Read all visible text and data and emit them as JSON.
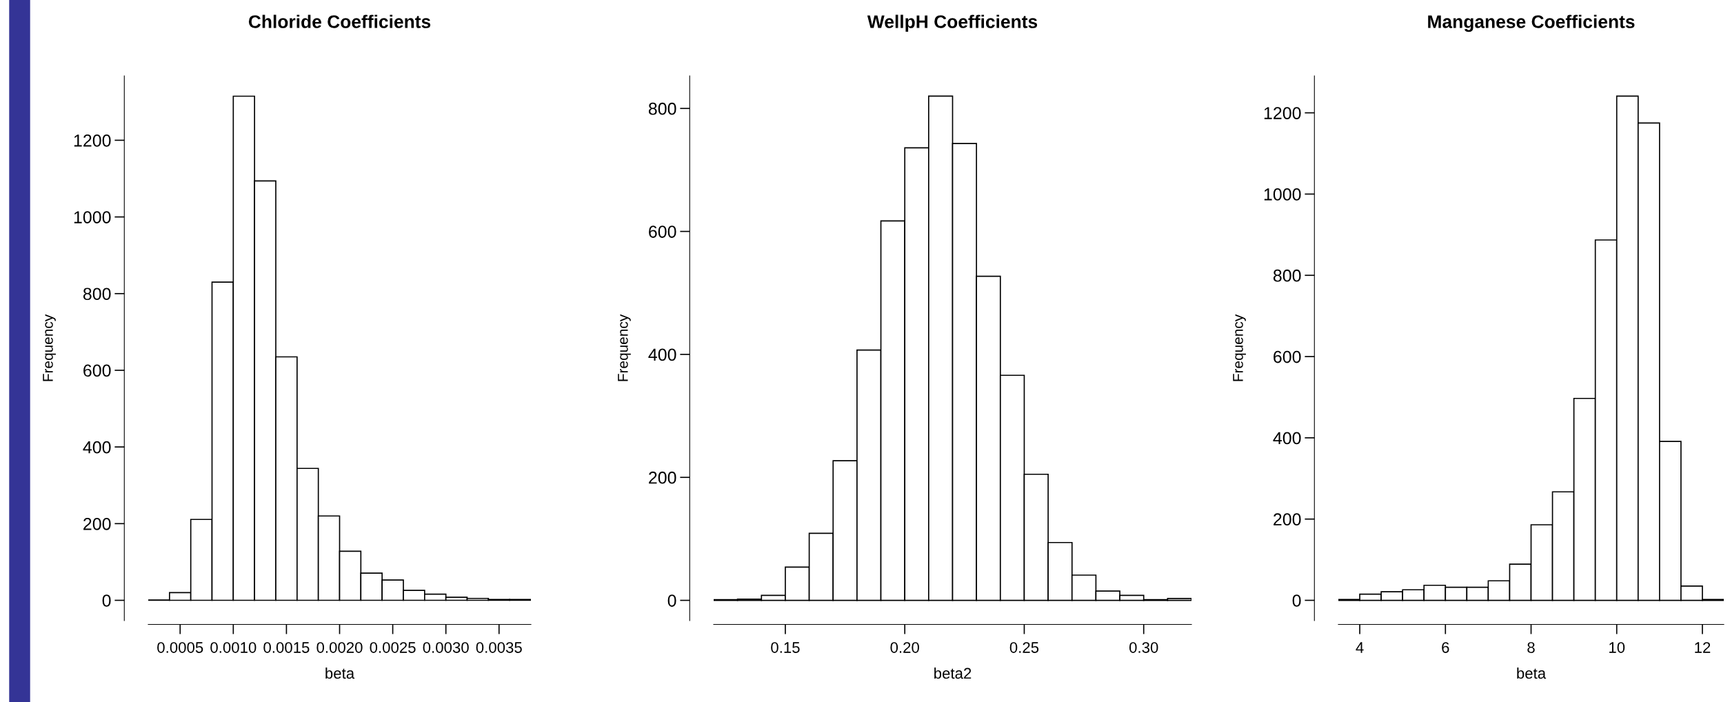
{
  "chart_data": [
    {
      "type": "histogram",
      "title": "Chloride Coefficients",
      "xlabel": "beta",
      "ylabel": "Frequency",
      "color": "#ffffff",
      "grid": false,
      "legend": false,
      "bins": [
        0.0002,
        0.0004,
        0.0006,
        0.0008,
        0.001,
        0.0012,
        0.0014,
        0.0016,
        0.0018,
        0.002,
        0.0022,
        0.0024,
        0.0026,
        0.0028,
        0.003,
        0.0032,
        0.0034,
        0.0036,
        0.0038
      ],
      "values": [
        1,
        20,
        211,
        830,
        1315,
        1094,
        635,
        344,
        220,
        128,
        71,
        53,
        26,
        16,
        8,
        5,
        2,
        2
      ],
      "xlim": [
        0.0002,
        0.0038
      ],
      "xticks": [
        {
          "value": 0.0005,
          "label": "0.0005"
        },
        {
          "value": 0.001,
          "label": "0.0010"
        },
        {
          "value": 0.0015,
          "label": "0.0015"
        },
        {
          "value": 0.002,
          "label": "0.0020"
        },
        {
          "value": 0.0025,
          "label": "0.0025"
        },
        {
          "value": 0.003,
          "label": "0.0030"
        },
        {
          "value": 0.0035,
          "label": "0.0035"
        }
      ],
      "ylim": [
        -53,
        1368
      ],
      "yticks": [
        0,
        200,
        400,
        600,
        800,
        1000,
        1200
      ]
    },
    {
      "type": "histogram",
      "title": "WellpH Coefficients",
      "xlabel": "beta2",
      "ylabel": "Frequency",
      "color": "#ffffff",
      "grid": false,
      "legend": false,
      "bins": [
        0.12,
        0.13,
        0.14,
        0.15,
        0.16,
        0.17,
        0.18,
        0.19,
        0.2,
        0.21,
        0.22,
        0.23,
        0.24,
        0.25,
        0.26,
        0.27,
        0.28,
        0.29,
        0.3,
        0.31,
        0.32
      ],
      "values": [
        1,
        2,
        8,
        54,
        109,
        227,
        407,
        617,
        736,
        820,
        743,
        527,
        366,
        205,
        94,
        41,
        15,
        8,
        1,
        3
      ],
      "xlim": [
        0.12,
        0.32
      ],
      "xticks": [
        {
          "value": 0.15,
          "label": "0.15"
        },
        {
          "value": 0.2,
          "label": "0.20"
        },
        {
          "value": 0.25,
          "label": "0.25"
        },
        {
          "value": 0.3,
          "label": "0.30"
        }
      ],
      "ylim": [
        -33,
        853
      ],
      "yticks": [
        0,
        200,
        400,
        600,
        800
      ]
    },
    {
      "type": "histogram",
      "title": "Manganese Coefficients",
      "xlabel": "beta",
      "ylabel": "Frequency",
      "color": "#ffffff",
      "grid": false,
      "legend": false,
      "bins": [
        3.5,
        4,
        4.5,
        5,
        5.5,
        6,
        6.5,
        7,
        7.5,
        8,
        8.5,
        9,
        9.5,
        10,
        10.5,
        11,
        11.5,
        12,
        12.5
      ],
      "values": [
        2,
        15,
        21,
        26,
        37,
        32,
        32,
        48,
        89,
        186,
        267,
        497,
        887,
        1241,
        1175,
        391,
        35,
        2
      ],
      "xlim": [
        3.5,
        12.5
      ],
      "xticks": [
        4,
        6,
        8,
        10,
        12
      ],
      "ylim": [
        -50,
        1291
      ],
      "yticks": [
        0,
        200,
        400,
        600,
        800,
        1000,
        1200
      ]
    }
  ]
}
